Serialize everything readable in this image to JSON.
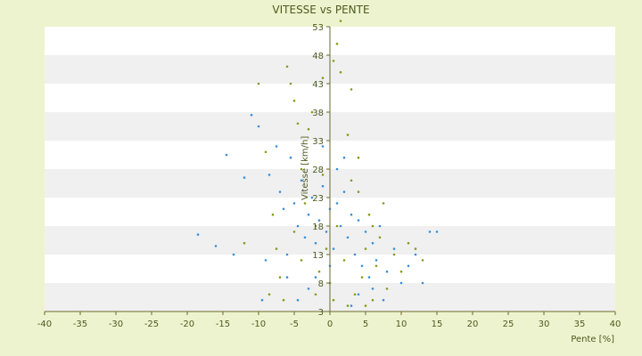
{
  "chart_data": {
    "type": "scatter",
    "title": "VITESSE vs PENTE",
    "xlabel": "Pente [%]",
    "ylabel": "Vitesse [km/h]",
    "xlim": [
      -40,
      40
    ],
    "ylim": [
      3,
      53
    ],
    "x_ticks": [
      "-40",
      "-35",
      "-30",
      "-25",
      "-20",
      "-15",
      "-10",
      "-5",
      "0",
      "5",
      "10",
      "15",
      "20",
      "25",
      "30",
      "35",
      "40"
    ],
    "y_ticks": [
      "53",
      "48",
      "43",
      "38",
      "33",
      "28",
      "23",
      "18",
      "13",
      "8",
      "3"
    ],
    "grid": "horizontal alternating bands",
    "background_color": "#eef3cf",
    "band_colors": [
      "#ffffff",
      "#f0f0f0"
    ],
    "axis_color": "#6b6b2a",
    "series": [
      {
        "color": "#3a8fd8",
        "points": [
          [
            -18.5,
            16.5
          ],
          [
            -16,
            14.5
          ],
          [
            -14.5,
            30.5
          ],
          [
            -13.5,
            13
          ],
          [
            -12,
            26.5
          ],
          [
            -11,
            37.5
          ],
          [
            -10,
            35.5
          ],
          [
            -9,
            12
          ],
          [
            -8.5,
            27
          ],
          [
            -7.5,
            32
          ],
          [
            -7,
            24
          ],
          [
            -6.5,
            21
          ],
          [
            -6,
            13
          ],
          [
            -5.5,
            30
          ],
          [
            -5,
            22
          ],
          [
            -4.5,
            18
          ],
          [
            -4,
            26
          ],
          [
            -3.5,
            16
          ],
          [
            -3,
            20
          ],
          [
            -2.5,
            23
          ],
          [
            -2,
            15
          ],
          [
            -1.5,
            19
          ],
          [
            -1,
            25
          ],
          [
            -0.5,
            17
          ],
          [
            0,
            21
          ],
          [
            0.5,
            14
          ],
          [
            1,
            22
          ],
          [
            1.5,
            18
          ],
          [
            2,
            24
          ],
          [
            2.5,
            16
          ],
          [
            3,
            20
          ],
          [
            3.5,
            13
          ],
          [
            4,
            19
          ],
          [
            4.5,
            11
          ],
          [
            5,
            17
          ],
          [
            5.5,
            9
          ],
          [
            6,
            15
          ],
          [
            6.5,
            12
          ],
          [
            7,
            18
          ],
          [
            8,
            10
          ],
          [
            9,
            14
          ],
          [
            10,
            8
          ],
          [
            11,
            11
          ],
          [
            12,
            13
          ],
          [
            13,
            8
          ],
          [
            14,
            17
          ],
          [
            15,
            17
          ],
          [
            -9.5,
            5
          ],
          [
            -4.5,
            5
          ],
          [
            3,
            4
          ],
          [
            7.5,
            5
          ],
          [
            -2,
            9
          ],
          [
            1,
            28
          ],
          [
            -1,
            32
          ],
          [
            2,
            30
          ],
          [
            -3,
            7
          ],
          [
            4,
            6
          ],
          [
            -6,
            9
          ],
          [
            6,
            7
          ],
          [
            0,
            11
          ]
        ]
      },
      {
        "color": "#8a9a1c",
        "points": [
          [
            -10,
            43
          ],
          [
            -9,
            31
          ],
          [
            -8,
            20
          ],
          [
            -7.5,
            14
          ],
          [
            -7,
            9
          ],
          [
            -6,
            46
          ],
          [
            -5.5,
            43
          ],
          [
            -5,
            40
          ],
          [
            -4.5,
            36
          ],
          [
            -4,
            28
          ],
          [
            -3.5,
            22
          ],
          [
            -3,
            35
          ],
          [
            -2.5,
            38
          ],
          [
            -2,
            18
          ],
          [
            -1.5,
            10
          ],
          [
            -1,
            44
          ],
          [
            -0.5,
            14
          ],
          [
            0,
            8
          ],
          [
            0.5,
            47
          ],
          [
            1,
            50
          ],
          [
            1.5,
            45
          ],
          [
            2,
            12
          ],
          [
            2.5,
            34
          ],
          [
            3,
            42
          ],
          [
            3.5,
            6
          ],
          [
            4,
            24
          ],
          [
            4.5,
            9
          ],
          [
            5,
            14
          ],
          [
            5.5,
            20
          ],
          [
            6,
            5
          ],
          [
            6.5,
            11
          ],
          [
            7,
            16
          ],
          [
            7.5,
            22
          ],
          [
            8,
            7
          ],
          [
            9,
            13
          ],
          [
            10,
            10
          ],
          [
            11,
            15
          ],
          [
            12,
            14
          ],
          [
            13,
            12
          ],
          [
            -12,
            15
          ],
          [
            -8.5,
            6
          ],
          [
            -6.5,
            5
          ],
          [
            -2,
            6
          ],
          [
            0.5,
            5
          ],
          [
            2.5,
            4
          ],
          [
            5,
            4
          ],
          [
            -4,
            12
          ],
          [
            1,
            18
          ],
          [
            3,
            26
          ],
          [
            -1,
            27
          ],
          [
            1.5,
            54
          ],
          [
            -5,
            17
          ],
          [
            4,
            30
          ],
          [
            6,
            18
          ]
        ]
      }
    ]
  }
}
